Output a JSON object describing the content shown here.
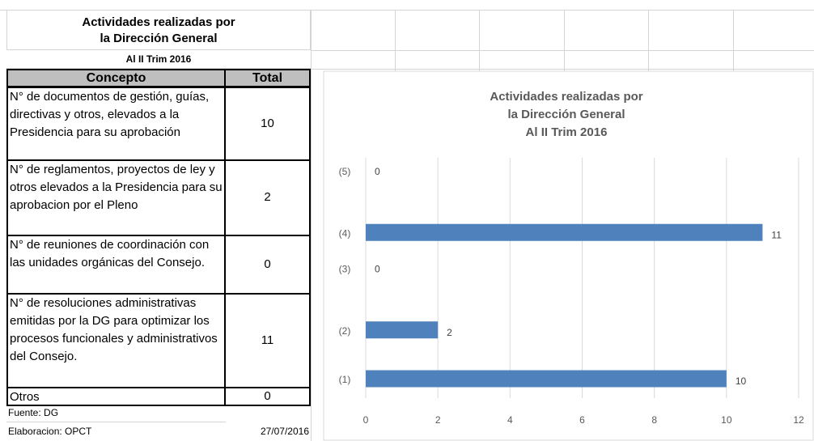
{
  "table": {
    "title": [
      "Actividades realizadas por",
      "la Dirección General"
    ],
    "subtitle": "Al II Trim 2016",
    "header": [
      "Concepto",
      "Total"
    ],
    "rows": [
      [
        "N° de documentos de gestión, guías, directivas y otros, elevados a la Presidencia para su aprobación",
        10
      ],
      [
        "N° de reglamentos, proyectos de ley y otros elevados a la Presidencia para su aprobacion por el Pleno",
        2
      ],
      [
        "N° de reuniones de coordinación con las unidades orgánicas del Consejo.",
        0
      ],
      [
        "N° de resoluciones administrativas emitidas por la DG para optimizar los procesos funcionales y administrativos del Consejo.",
        11
      ],
      [
        "Otros",
        0
      ]
    ],
    "source": "Fuente: DG",
    "prepared_by": "Elaboracion: OPCT",
    "date": "27/07/2016"
  },
  "chart_data": {
    "type": "hbar",
    "title": [
      "Actividades realizadas por",
      "la Dirección General",
      "Al II Trim 2016"
    ],
    "categories": [
      "(1)",
      "(2)",
      "(3)",
      "(4)",
      "(5)"
    ],
    "values": [
      10,
      2,
      0,
      11,
      0
    ],
    "color": "#4f81bd",
    "xlim": [
      0,
      12
    ],
    "xticks": [
      0,
      2,
      4,
      6,
      8,
      10,
      12
    ],
    "grid": true
  }
}
